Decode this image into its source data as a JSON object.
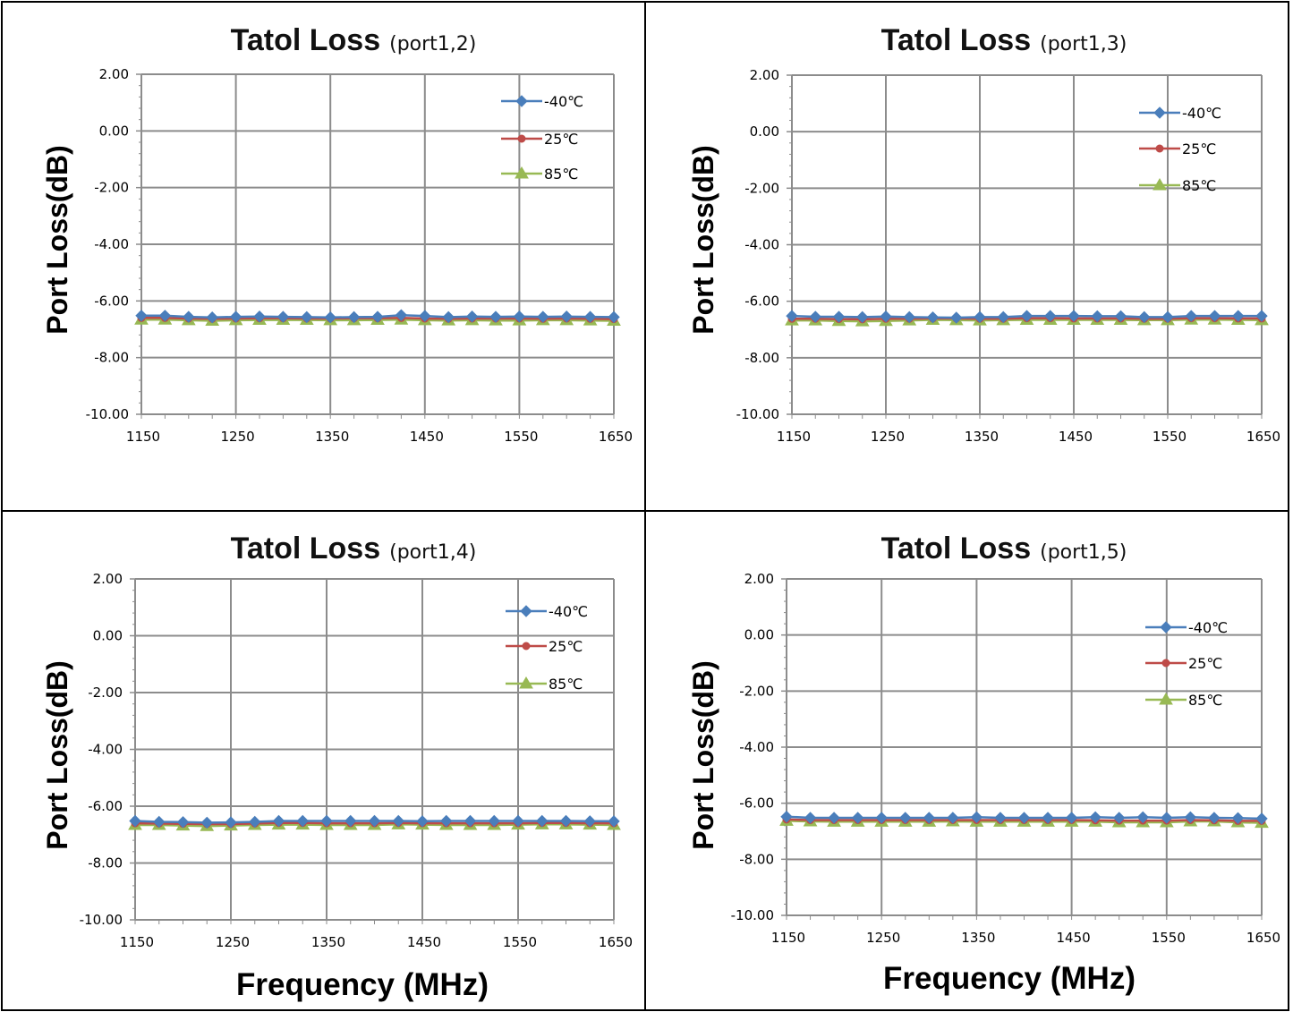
{
  "chart_data": [
    {
      "type": "line",
      "title": "Tatol Loss",
      "subtitle": "(port1,2)",
      "ylabel": "Port   Loss(dB)",
      "xlabel": "",
      "xlim": [
        1150,
        1650
      ],
      "ylim": [
        -10,
        2
      ],
      "yticks": [
        "2.00",
        "0.00",
        "-2.00",
        "-4.00",
        "-6.00",
        "-8.00",
        "-10.00"
      ],
      "xticks": [
        "1150",
        "1250",
        "1350",
        "1450",
        "1550",
        "1650"
      ],
      "grid": true,
      "legend_position": "top-right",
      "x": [
        1150,
        1175,
        1200,
        1225,
        1250,
        1275,
        1300,
        1325,
        1350,
        1375,
        1400,
        1425,
        1450,
        1475,
        1500,
        1525,
        1550,
        1575,
        1600,
        1625,
        1650
      ],
      "series": [
        {
          "name": "-40℃",
          "color": "#4a7ebb",
          "marker": "diamond",
          "values": [
            -6.52,
            -6.52,
            -6.56,
            -6.58,
            -6.56,
            -6.55,
            -6.56,
            -6.57,
            -6.58,
            -6.57,
            -6.56,
            -6.5,
            -6.53,
            -6.57,
            -6.55,
            -6.56,
            -6.55,
            -6.56,
            -6.55,
            -6.56,
            -6.57
          ]
        },
        {
          "name": "25℃",
          "color": "#be4b48",
          "marker": "circle",
          "values": [
            -6.6,
            -6.6,
            -6.62,
            -6.63,
            -6.62,
            -6.61,
            -6.61,
            -6.62,
            -6.62,
            -6.61,
            -6.61,
            -6.6,
            -6.62,
            -6.63,
            -6.62,
            -6.62,
            -6.62,
            -6.63,
            -6.62,
            -6.63,
            -6.64
          ]
        },
        {
          "name": "85℃",
          "color": "#98b954",
          "marker": "triangle",
          "values": [
            -6.66,
            -6.66,
            -6.68,
            -6.7,
            -6.68,
            -6.67,
            -6.67,
            -6.67,
            -6.68,
            -6.68,
            -6.67,
            -6.66,
            -6.68,
            -6.69,
            -6.68,
            -6.69,
            -6.69,
            -6.68,
            -6.68,
            -6.69,
            -6.7
          ]
        }
      ]
    },
    {
      "type": "line",
      "title": "Tatol Loss",
      "subtitle": "(port1,3)",
      "ylabel": "Port   Loss(dB)",
      "xlabel": "",
      "xlim": [
        1150,
        1650
      ],
      "ylim": [
        -10,
        2
      ],
      "yticks": [
        "2.00",
        "0.00",
        "-2.00",
        "-4.00",
        "-6.00",
        "-8.00",
        "-10.00"
      ],
      "xticks": [
        "1150",
        "1250",
        "1350",
        "1450",
        "1550",
        "1650"
      ],
      "grid": true,
      "legend_position": "top-right",
      "x": [
        1150,
        1175,
        1200,
        1225,
        1250,
        1275,
        1300,
        1325,
        1350,
        1375,
        1400,
        1425,
        1450,
        1475,
        1500,
        1525,
        1550,
        1575,
        1600,
        1625,
        1650
      ],
      "series": [
        {
          "name": "-40℃",
          "color": "#4a7ebb",
          "marker": "diamond",
          "values": [
            -6.52,
            -6.55,
            -6.55,
            -6.56,
            -6.54,
            -6.56,
            -6.57,
            -6.58,
            -6.56,
            -6.56,
            -6.52,
            -6.52,
            -6.52,
            -6.53,
            -6.53,
            -6.56,
            -6.56,
            -6.52,
            -6.52,
            -6.52,
            -6.52
          ]
        },
        {
          "name": "25℃",
          "color": "#be4b48",
          "marker": "circle",
          "values": [
            -6.62,
            -6.62,
            -6.63,
            -6.64,
            -6.62,
            -6.62,
            -6.61,
            -6.61,
            -6.62,
            -6.62,
            -6.6,
            -6.6,
            -6.61,
            -6.61,
            -6.61,
            -6.62,
            -6.62,
            -6.6,
            -6.6,
            -6.61,
            -6.61
          ]
        },
        {
          "name": "85℃",
          "color": "#98b954",
          "marker": "triangle",
          "values": [
            -6.68,
            -6.68,
            -6.7,
            -6.71,
            -6.7,
            -6.68,
            -6.66,
            -6.67,
            -6.68,
            -6.67,
            -6.66,
            -6.66,
            -6.66,
            -6.66,
            -6.66,
            -6.67,
            -6.67,
            -6.65,
            -6.65,
            -6.66,
            -6.67
          ]
        }
      ]
    },
    {
      "type": "line",
      "title": "Tatol Loss",
      "subtitle": "(port1,4)",
      "ylabel": "Port   Loss(dB)",
      "xlabel": "Frequency (MHz)",
      "xlim": [
        1150,
        1650
      ],
      "ylim": [
        -10,
        2
      ],
      "yticks": [
        "2.00",
        "0.00",
        "-2.00",
        "-4.00",
        "-6.00",
        "-8.00",
        "-10.00"
      ],
      "xticks": [
        "1150",
        "1250",
        "1350",
        "1450",
        "1550",
        "1650"
      ],
      "grid": true,
      "legend_position": "top-right",
      "x": [
        1150,
        1175,
        1200,
        1225,
        1250,
        1275,
        1300,
        1325,
        1350,
        1375,
        1400,
        1425,
        1450,
        1475,
        1500,
        1525,
        1550,
        1575,
        1600,
        1625,
        1650
      ],
      "series": [
        {
          "name": "-40℃",
          "color": "#4a7ebb",
          "marker": "diamond",
          "values": [
            -6.52,
            -6.55,
            -6.56,
            -6.58,
            -6.57,
            -6.55,
            -6.52,
            -6.52,
            -6.52,
            -6.52,
            -6.52,
            -6.52,
            -6.53,
            -6.52,
            -6.52,
            -6.52,
            -6.52,
            -6.52,
            -6.52,
            -6.53,
            -6.53
          ]
        },
        {
          "name": "25℃",
          "color": "#be4b48",
          "marker": "circle",
          "values": [
            -6.6,
            -6.61,
            -6.62,
            -6.63,
            -6.63,
            -6.61,
            -6.59,
            -6.59,
            -6.6,
            -6.6,
            -6.6,
            -6.59,
            -6.6,
            -6.6,
            -6.6,
            -6.6,
            -6.6,
            -6.59,
            -6.59,
            -6.6,
            -6.6
          ]
        },
        {
          "name": "85℃",
          "color": "#98b954",
          "marker": "triangle",
          "values": [
            -6.66,
            -6.66,
            -6.68,
            -6.7,
            -6.68,
            -6.66,
            -6.65,
            -6.65,
            -6.66,
            -6.66,
            -6.66,
            -6.64,
            -6.65,
            -6.66,
            -6.66,
            -6.66,
            -6.65,
            -6.64,
            -6.64,
            -6.65,
            -6.66
          ]
        }
      ]
    },
    {
      "type": "line",
      "title": "Tatol Loss",
      "subtitle": "(port1,5)",
      "ylabel": "Port   Loss(dB)",
      "xlabel": "Frequency (MHz)",
      "xlim": [
        1150,
        1650
      ],
      "ylim": [
        -10,
        2
      ],
      "yticks": [
        "2.00",
        "0.00",
        "-2.00",
        "-4.00",
        "-6.00",
        "-8.00",
        "-10.00"
      ],
      "xticks": [
        "1150",
        "1250",
        "1350",
        "1450",
        "1550",
        "1650"
      ],
      "grid": true,
      "legend_position": "top-right",
      "x": [
        1150,
        1175,
        1200,
        1225,
        1250,
        1275,
        1300,
        1325,
        1350,
        1375,
        1400,
        1425,
        1450,
        1475,
        1500,
        1525,
        1550,
        1575,
        1600,
        1625,
        1650
      ],
      "series": [
        {
          "name": "-40℃",
          "color": "#4a7ebb",
          "marker": "diamond",
          "values": [
            -6.48,
            -6.52,
            -6.52,
            -6.52,
            -6.52,
            -6.52,
            -6.52,
            -6.52,
            -6.5,
            -6.52,
            -6.52,
            -6.52,
            -6.52,
            -6.5,
            -6.52,
            -6.5,
            -6.52,
            -6.5,
            -6.52,
            -6.53,
            -6.55
          ]
        },
        {
          "name": "25℃",
          "color": "#be4b48",
          "marker": "circle",
          "values": [
            -6.58,
            -6.6,
            -6.6,
            -6.6,
            -6.6,
            -6.6,
            -6.6,
            -6.6,
            -6.6,
            -6.6,
            -6.6,
            -6.6,
            -6.6,
            -6.61,
            -6.62,
            -6.62,
            -6.62,
            -6.6,
            -6.61,
            -6.63,
            -6.63
          ]
        },
        {
          "name": "85℃",
          "color": "#98b954",
          "marker": "triangle",
          "values": [
            -6.63,
            -6.65,
            -6.66,
            -6.66,
            -6.66,
            -6.66,
            -6.66,
            -6.65,
            -6.66,
            -6.66,
            -6.66,
            -6.66,
            -6.66,
            -6.66,
            -6.68,
            -6.68,
            -6.68,
            -6.65,
            -6.65,
            -6.68,
            -6.7
          ]
        }
      ]
    }
  ]
}
